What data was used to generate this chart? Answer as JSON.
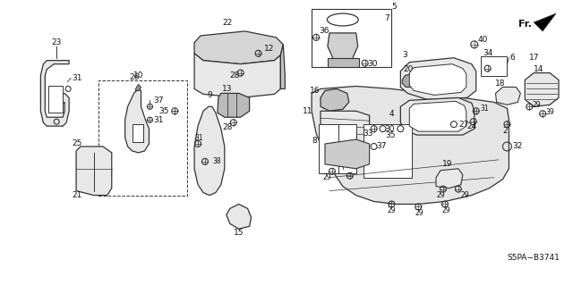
{
  "background_color": "#ffffff",
  "diagram_code": "S5PA-B3741",
  "fig_width": 6.4,
  "fig_height": 3.19,
  "dpi": 100,
  "line_color": "#333333",
  "fill_color": "#e8e8e8",
  "text_color": "#111111"
}
